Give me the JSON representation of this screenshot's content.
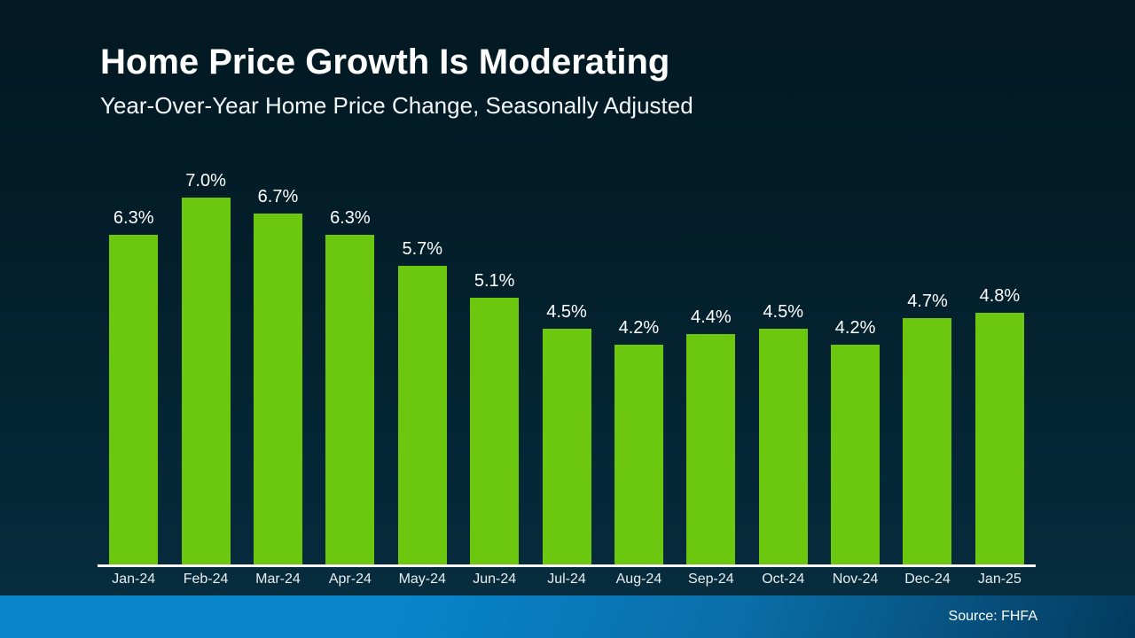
{
  "header": {
    "title": "Home Price Growth Is Moderating",
    "subtitle": "Year-Over-Year Home Price Change, Seasonally Adjusted"
  },
  "footer": {
    "source_label": "Source: FHFA"
  },
  "colors": {
    "bar": "#6bc80f",
    "background_top": "#021822",
    "background_bottom": "#062c3e",
    "footer_blue_left": "#0884cb",
    "footer_blue_right": "#043a5e",
    "axis": "#ffffff",
    "text": "#ffffff"
  },
  "chart_data": {
    "type": "bar",
    "title": "Home Price Growth Is Moderating",
    "subtitle": "Year-Over-Year Home Price Change, Seasonally Adjusted",
    "categories": [
      "Jan-24",
      "Feb-24",
      "Mar-24",
      "Apr-24",
      "May-24",
      "Jun-24",
      "Jul-24",
      "Aug-24",
      "Sep-24",
      "Oct-24",
      "Nov-24",
      "Dec-24",
      "Jan-25"
    ],
    "values": [
      6.3,
      7.0,
      6.7,
      6.3,
      5.7,
      5.1,
      4.5,
      4.2,
      4.4,
      4.5,
      4.2,
      4.7,
      4.8
    ],
    "value_labels": [
      "6.3%",
      "7.0%",
      "6.7%",
      "6.3%",
      "5.7%",
      "5.1%",
      "4.5%",
      "4.2%",
      "4.4%",
      "4.5%",
      "4.2%",
      "4.7%",
      "4.8%"
    ],
    "xlabel": "",
    "ylabel": "",
    "ylim": [
      0,
      7.7
    ],
    "grid": false,
    "legend": "none",
    "data_labels_position": "above bars",
    "source": "Source: FHFA"
  }
}
